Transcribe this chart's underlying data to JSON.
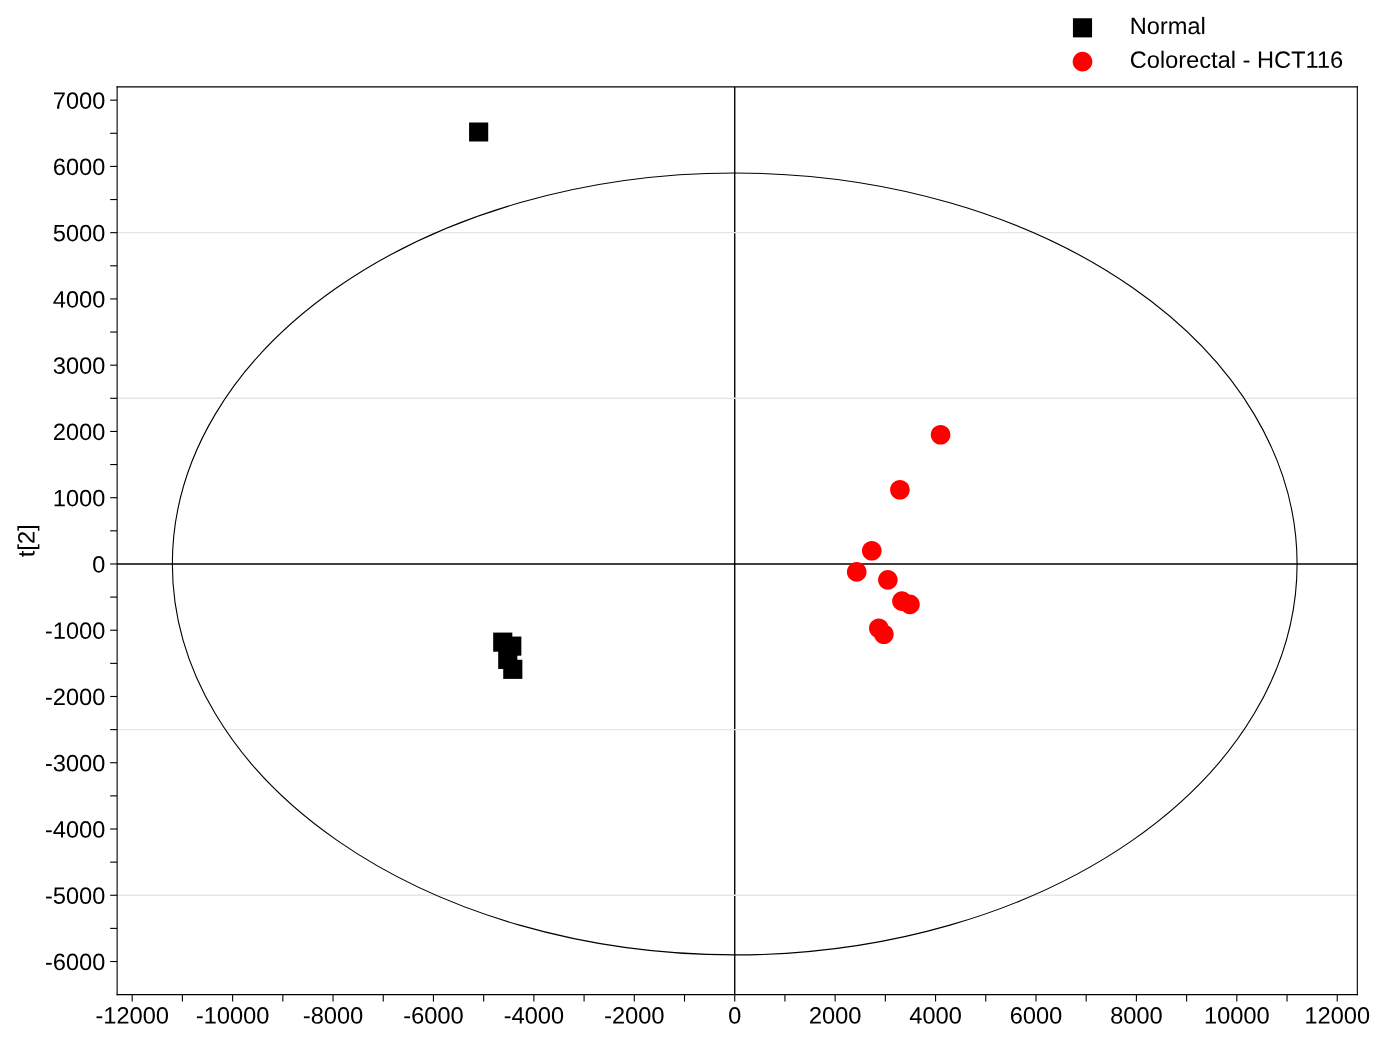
{
  "chart_data": {
    "type": "scatter",
    "ylabel": "t[2]",
    "legend": "top right",
    "xlim": [
      -12300,
      12400
    ],
    "ylim": [
      -6500,
      7200
    ],
    "xticks": [
      -12000,
      {
        "value": -11000,
        "label": null
      },
      -10000,
      {
        "value": -9000,
        "label": null
      },
      -8000,
      {
        "value": -7000,
        "label": null
      },
      -6000,
      {
        "value": -5000,
        "label": null
      },
      -4000,
      {
        "value": -3000,
        "label": null
      },
      -2000,
      {
        "value": -1000,
        "label": null
      },
      0,
      {
        "value": 1000,
        "label": null
      },
      2000,
      {
        "value": 3000,
        "label": null
      },
      4000,
      {
        "value": 5000,
        "label": null
      },
      6000,
      {
        "value": 7000,
        "label": null
      },
      8000,
      {
        "value": 9000,
        "label": null
      },
      10000,
      {
        "value": 11000,
        "label": null
      },
      12000
    ],
    "yticks": [
      -6000,
      {
        "value": -5500,
        "label": null
      },
      -5000,
      {
        "value": -4500,
        "label": null
      },
      -4000,
      {
        "value": -3500,
        "label": null
      },
      -3000,
      {
        "value": -2500,
        "label": null
      },
      -2000,
      {
        "value": -1500,
        "label": null
      },
      -1000,
      {
        "value": -500,
        "label": null
      },
      0,
      {
        "value": 500,
        "label": null
      },
      1000,
      {
        "value": 1500,
        "label": null
      },
      2000,
      {
        "value": 2500,
        "label": null
      },
      3000,
      {
        "value": 3500,
        "label": null
      },
      4000,
      {
        "value": 4500,
        "label": null
      },
      5000,
      {
        "value": 5500,
        "label": null
      },
      6000,
      {
        "value": 6500,
        "label": null
      },
      7000
    ],
    "ref_lines": [
      {
        "axis": "x",
        "value": 0,
        "color": "#000000"
      },
      {
        "axis": "y",
        "value": 0,
        "color": "#000000"
      },
      {
        "axis": "y",
        "value": 5000,
        "color": "#e6e6e6"
      },
      {
        "axis": "y",
        "value": 2500,
        "color": "#e6e6e6"
      },
      {
        "axis": "y",
        "value": -2500,
        "color": "#e6e6e6"
      },
      {
        "axis": "y",
        "value": -5000,
        "color": "#e6e6e6"
      }
    ],
    "series": [
      {
        "name": "Normal",
        "color": "#000000",
        "marker": "square",
        "x": [
          -5100,
          -4620,
          -4440,
          -4520,
          -4420
        ],
        "values": [
          6520,
          -1180,
          -1240,
          -1440,
          -1590
        ]
      },
      {
        "name": "Colorectal - HCT116",
        "color": "#ff0000",
        "marker": "circle",
        "x": [
          4100,
          3290,
          2730,
          2430,
          3050,
          3330,
          3490,
          2870,
          2970
        ],
        "values": [
          1950,
          1120,
          200,
          -120,
          -240,
          -560,
          -610,
          -970,
          -1060
        ]
      }
    ]
  }
}
